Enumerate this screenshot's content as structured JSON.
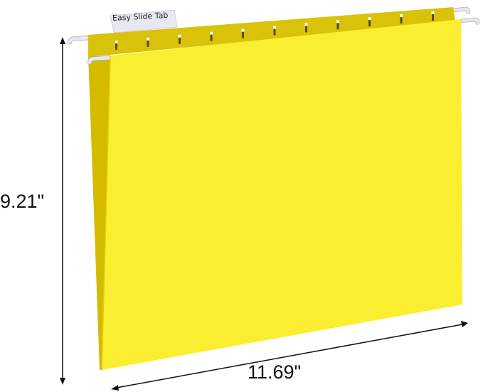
{
  "product": {
    "tab_label": "Easy Slide Tab",
    "height_label": "9.21\"",
    "width_label": "11.69\"",
    "colors": {
      "front": "#fbed2f",
      "back": "#d9c20a",
      "flap": "#d4bb00",
      "hook": "#e6e8ee"
    }
  }
}
